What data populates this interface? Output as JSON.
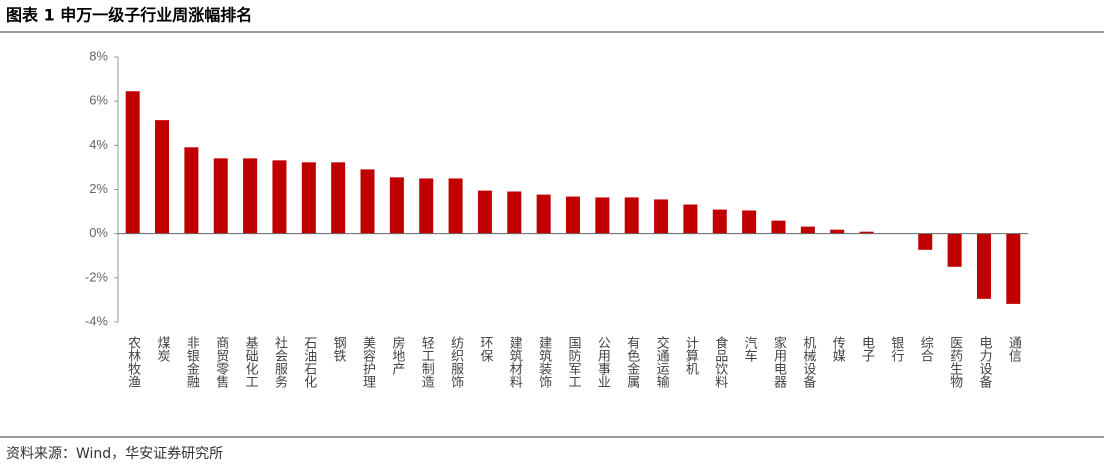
{
  "chart_data": {
    "type": "bar",
    "title": "图表 1 申万一级子行业周涨幅排名",
    "source": "资料来源：Wind，华安证券研究所",
    "categories": [
      "农林牧渔",
      "煤炭",
      "非银金融",
      "商贸零售",
      "基础化工",
      "社会服务",
      "石油石化",
      "钢铁",
      "美容护理",
      "房地产",
      "轻工制造",
      "纺织服饰",
      "环保",
      "建筑材料",
      "建筑装饰",
      "国防军工",
      "公用事业",
      "有色金属",
      "交通运输",
      "计算机",
      "食品饮料",
      "汽车",
      "家用电器",
      "机械设备",
      "传媒",
      "电子",
      "银行",
      "综合",
      "医药生物",
      "电力设备",
      "通信"
    ],
    "values": [
      6.45,
      5.14,
      3.91,
      3.41,
      3.41,
      3.32,
      3.23,
      3.23,
      2.91,
      2.55,
      2.5,
      2.5,
      1.95,
      1.91,
      1.77,
      1.68,
      1.64,
      1.64,
      1.55,
      1.32,
      1.09,
      1.05,
      0.59,
      0.32,
      0.18,
      0.09,
      0,
      -0.73,
      -1.5,
      -2.95,
      -3.18
    ],
    "color": "#c00000",
    "ylim": [
      -4,
      8
    ],
    "yticks": [
      {
        "value": -4,
        "label": "-4%"
      },
      {
        "value": -2,
        "label": "-2%"
      },
      {
        "value": 0,
        "label": "0%"
      },
      {
        "value": 2,
        "label": "2%"
      },
      {
        "value": 4,
        "label": "4%"
      },
      {
        "value": 6,
        "label": "6%"
      },
      {
        "value": 8,
        "label": "8%"
      }
    ]
  }
}
